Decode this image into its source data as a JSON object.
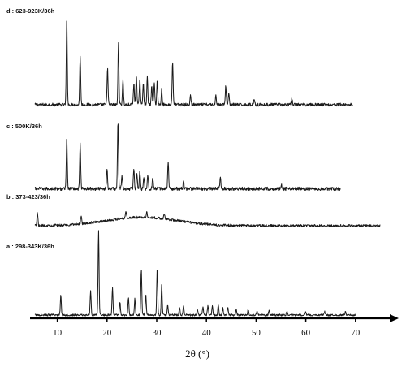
{
  "chart_data": {
    "type": "line",
    "title": "",
    "xlabel": "2θ (°)",
    "ylabel": "",
    "xlim": [
      5,
      75
    ],
    "xticks": [
      10,
      20,
      30,
      40,
      50,
      60,
      70
    ],
    "x_axis_arrow": true,
    "grid": false,
    "legend": "none",
    "line_color": "#1a1a1a",
    "series": [
      {
        "name": "d : 623-923K/36h",
        "x_range": [
          5.5,
          69.5
        ],
        "baseline": 0.02,
        "noise": 0.018,
        "peaks": [
          [
            11.9,
            1.0
          ],
          [
            14.6,
            0.57
          ],
          [
            20.1,
            0.43
          ],
          [
            22.3,
            0.72
          ],
          [
            23.2,
            0.3
          ],
          [
            25.4,
            0.25
          ],
          [
            25.9,
            0.36
          ],
          [
            26.6,
            0.31
          ],
          [
            27.3,
            0.26
          ],
          [
            28.1,
            0.32
          ],
          [
            29.0,
            0.22
          ],
          [
            29.5,
            0.25
          ],
          [
            30.1,
            0.28
          ],
          [
            31.0,
            0.18
          ],
          [
            33.2,
            0.51
          ],
          [
            36.8,
            0.1
          ],
          [
            41.9,
            0.12
          ],
          [
            43.9,
            0.22
          ],
          [
            44.5,
            0.14
          ],
          [
            49.6,
            0.07
          ],
          [
            57.2,
            0.07
          ]
        ]
      },
      {
        "name": "c : 500K/36h",
        "x_range": [
          5.5,
          67.0
        ],
        "baseline": 0.03,
        "noise": 0.025,
        "peaks": [
          [
            11.9,
            0.76
          ],
          [
            14.6,
            0.68
          ],
          [
            20.0,
            0.3
          ],
          [
            22.2,
            1.0
          ],
          [
            23.0,
            0.2
          ],
          [
            25.4,
            0.3
          ],
          [
            26.0,
            0.23
          ],
          [
            26.6,
            0.26
          ],
          [
            27.4,
            0.18
          ],
          [
            28.2,
            0.2
          ],
          [
            29.2,
            0.16
          ],
          [
            32.3,
            0.4
          ],
          [
            35.4,
            0.11
          ],
          [
            42.8,
            0.16
          ],
          [
            55.1,
            0.06
          ]
        ]
      },
      {
        "name": "b : 373-423/36h",
        "x_range": [
          5.5,
          75.0
        ],
        "baseline": 0.1,
        "noise": 0.05,
        "hump": {
          "center": 27.0,
          "width": 10.0,
          "height": 0.35
        },
        "peaks": [
          [
            6.0,
            0.5
          ],
          [
            14.8,
            0.35
          ],
          [
            23.8,
            0.3
          ],
          [
            28.0,
            0.25
          ],
          [
            31.5,
            0.2
          ]
        ]
      },
      {
        "name": "a : 298-343K/36h",
        "x_range": [
          5.5,
          70.0
        ],
        "baseline": 0.01,
        "noise": 0.012,
        "peaks": [
          [
            10.7,
            0.23
          ],
          [
            16.7,
            0.29
          ],
          [
            18.3,
            1.0
          ],
          [
            21.1,
            0.32
          ],
          [
            22.6,
            0.15
          ],
          [
            24.3,
            0.2
          ],
          [
            25.6,
            0.19
          ],
          [
            26.9,
            0.55
          ],
          [
            27.8,
            0.24
          ],
          [
            30.1,
            0.56
          ],
          [
            31.0,
            0.36
          ],
          [
            32.2,
            0.12
          ],
          [
            34.6,
            0.09
          ],
          [
            35.4,
            0.1
          ],
          [
            38.2,
            0.07
          ],
          [
            39.3,
            0.1
          ],
          [
            40.3,
            0.12
          ],
          [
            41.2,
            0.1
          ],
          [
            42.4,
            0.12
          ],
          [
            43.3,
            0.08
          ],
          [
            44.3,
            0.09
          ],
          [
            46.0,
            0.06
          ],
          [
            48.4,
            0.06
          ],
          [
            50.2,
            0.05
          ],
          [
            52.6,
            0.05
          ],
          [
            56.2,
            0.05
          ],
          [
            60.0,
            0.04
          ],
          [
            63.8,
            0.04
          ],
          [
            68.0,
            0.04
          ]
        ]
      }
    ]
  }
}
